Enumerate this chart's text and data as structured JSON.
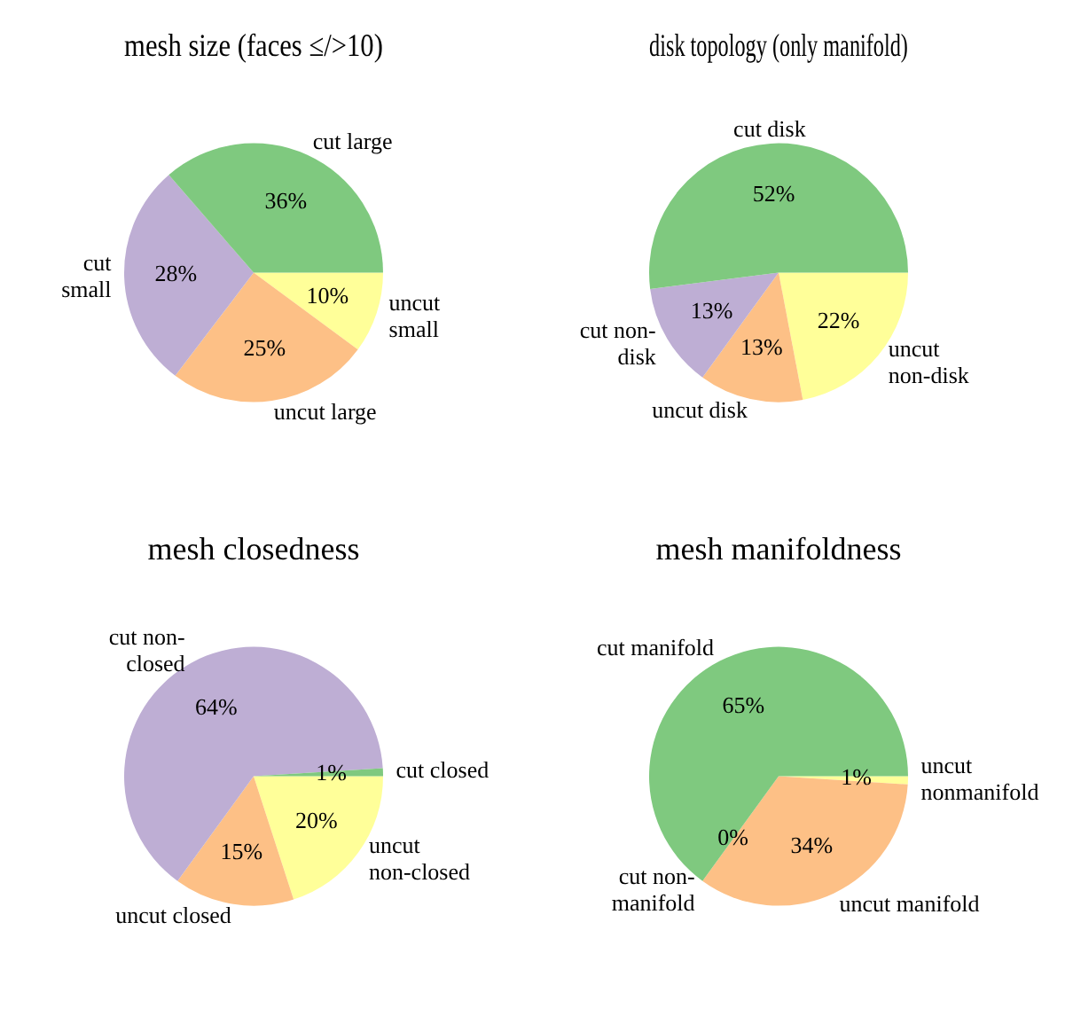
{
  "chart_data": [
    {
      "type": "pie",
      "title": "mesh size (faces ≤/>10)",
      "categories": [
        "uncut\nsmall",
        "uncut large",
        "cut\nsmall",
        "cut large"
      ],
      "values": [
        10,
        25,
        28,
        36
      ],
      "value_labels": [
        "10%",
        "25%",
        "28%",
        "36%"
      ],
      "colors": [
        "#ffff99",
        "#fdc086",
        "#beaed4",
        "#7fc97f"
      ]
    },
    {
      "type": "pie",
      "title": "disk topology (only manifold)",
      "categories": [
        "uncut\nnon-disk",
        "uncut disk",
        "cut non-\ndisk",
        "cut disk"
      ],
      "values": [
        22,
        13,
        13,
        52
      ],
      "value_labels": [
        "22%",
        "13%",
        "13%",
        "52%"
      ],
      "colors": [
        "#ffff99",
        "#fdc086",
        "#beaed4",
        "#7fc97f"
      ]
    },
    {
      "type": "pie",
      "title": "mesh closedness",
      "categories": [
        "uncut\nnon-closed",
        "uncut closed",
        "cut non-\nclosed",
        "cut closed"
      ],
      "values": [
        20,
        15,
        64,
        1
      ],
      "value_labels": [
        "20%",
        "15%",
        "64%",
        "1%"
      ],
      "colors": [
        "#ffff99",
        "#fdc086",
        "#beaed4",
        "#7fc97f"
      ]
    },
    {
      "type": "pie",
      "title": "mesh manifoldness",
      "categories": [
        "uncut\nnonmanifold",
        "uncut manifold",
        "cut non-\nmanifold",
        "cut manifold"
      ],
      "values": [
        1,
        34,
        0,
        65
      ],
      "value_labels": [
        "1%",
        "34%",
        "0%",
        "65%"
      ],
      "colors": [
        "#ffff99",
        "#fdc086",
        "#beaed4",
        "#7fc97f"
      ]
    }
  ]
}
